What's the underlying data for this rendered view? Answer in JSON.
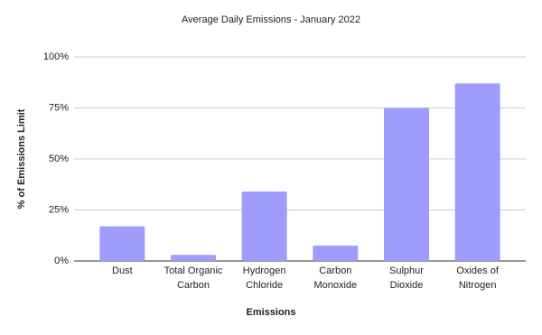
{
  "chart_data": {
    "type": "bar",
    "title": "Average Daily Emissions - January 2022",
    "x_label": "Emissions",
    "y_label": "% of Emissions Limit",
    "categories": [
      "Dust",
      "Total Organic Carbon",
      "Hydrogen Chloride",
      "Carbon Monoxide",
      "Sulphur Dioxide",
      "Oxides of Nitrogen"
    ],
    "values": [
      17,
      3,
      34,
      7.5,
      75,
      87
    ],
    "color": "#9e9dfb",
    "ylim": [
      0,
      100
    ],
    "yticks": [
      {
        "value": 0,
        "label": "0%"
      },
      {
        "value": 25,
        "label": "25%"
      },
      {
        "value": 50,
        "label": "50%"
      },
      {
        "value": 75,
        "label": "75%"
      },
      {
        "value": 100,
        "label": "100%"
      }
    ],
    "grid": true
  }
}
